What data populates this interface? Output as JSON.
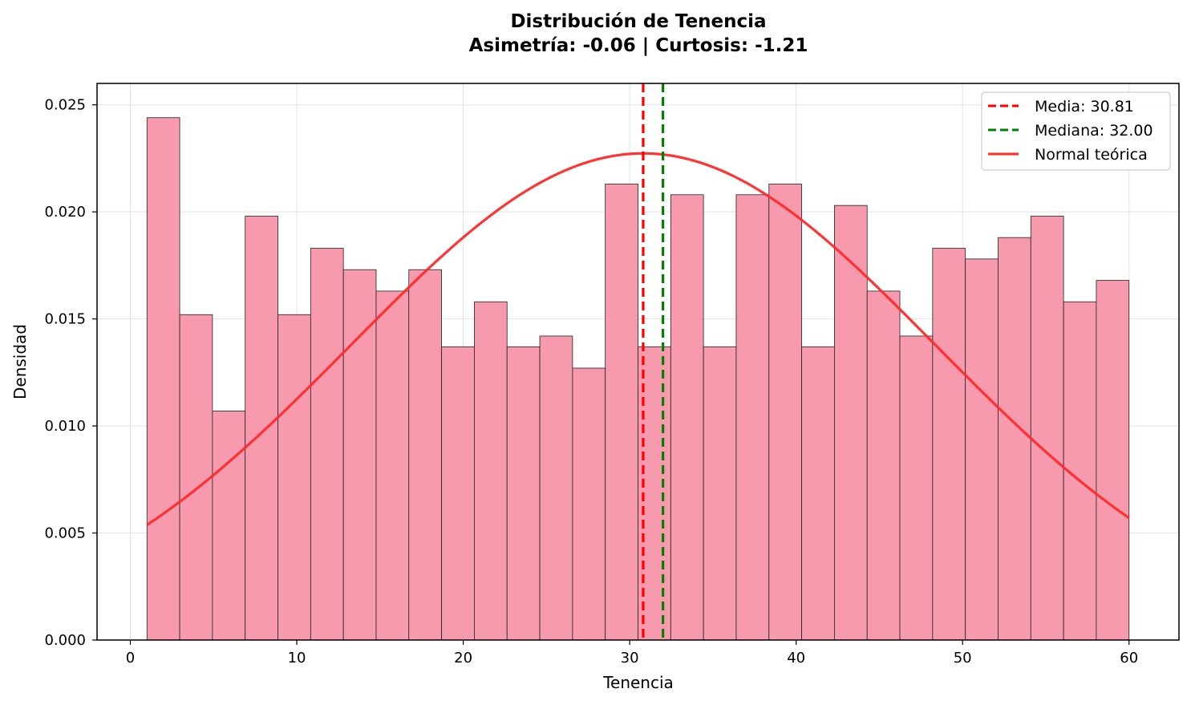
{
  "chart_data": {
    "type": "bar",
    "title": "Distribución de Tenencia",
    "subtitle": "Asimetría: -0.06 | Curtosis: -1.21",
    "xlabel": "Tenencia",
    "ylabel": "Densidad",
    "xlim": [
      -2,
      63
    ],
    "ylim": [
      0,
      0.026
    ],
    "xticks": [
      0,
      10,
      20,
      30,
      40,
      50,
      60
    ],
    "xtick_labels": [
      "0",
      "10",
      "20",
      "30",
      "40",
      "50",
      "60"
    ],
    "yticks": [
      0,
      0.005,
      0.01,
      0.015,
      0.02,
      0.025
    ],
    "ytick_labels": [
      "0.000",
      "0.005",
      "0.010",
      "0.015",
      "0.020",
      "0.025"
    ],
    "grid": true,
    "bin_edges": [
      1.0,
      2.967,
      4.933,
      6.9,
      8.867,
      10.833,
      12.8,
      14.767,
      16.733,
      18.7,
      20.667,
      22.633,
      24.6,
      26.567,
      28.533,
      30.5,
      32.467,
      34.433,
      36.4,
      38.367,
      40.333,
      42.3,
      44.267,
      46.233,
      48.2,
      50.167,
      52.133,
      54.1,
      56.067,
      58.033,
      60.0
    ],
    "values": [
      0.0244,
      0.0152,
      0.0107,
      0.0198,
      0.0152,
      0.0183,
      0.0173,
      0.0163,
      0.0173,
      0.0137,
      0.0158,
      0.0137,
      0.0142,
      0.0127,
      0.0213,
      0.0137,
      0.0208,
      0.0137,
      0.0208,
      0.0213,
      0.0137,
      0.0203,
      0.0163,
      0.0142,
      0.0183,
      0.0178,
      0.0188,
      0.0198,
      0.0158,
      0.0168
    ],
    "bar_color": "#f79aae",
    "bar_edge_color": "#222222",
    "mean": 30.81,
    "median": 32.0,
    "normal_fit": {
      "mu": 30.81,
      "sigma": 17.55,
      "x_range": [
        1,
        60
      ]
    },
    "series": [
      {
        "name": "Media: 30.81",
        "style": "dashed",
        "color": "#ff0000"
      },
      {
        "name": "Mediana: 32.00",
        "style": "dashed",
        "color": "#008000"
      },
      {
        "name": "Normal teórica",
        "style": "solid",
        "color": "#ff2a2a"
      }
    ],
    "legend_position": "top-right"
  }
}
